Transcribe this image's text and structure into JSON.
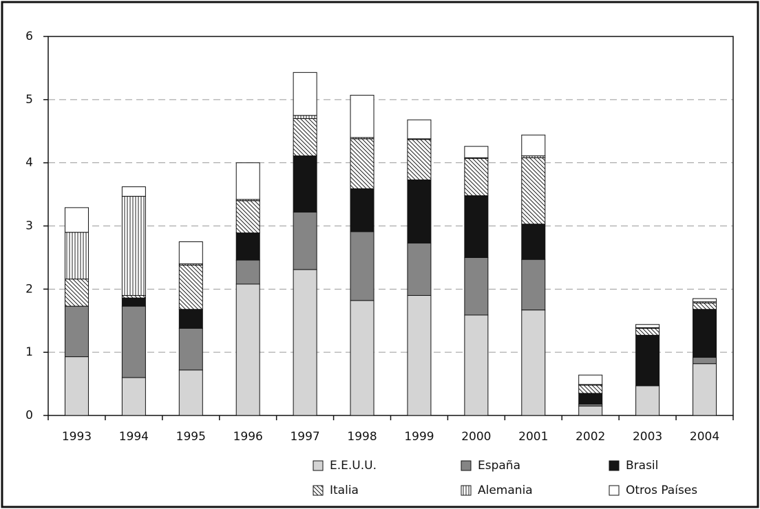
{
  "chart_data": {
    "type": "stacked_bar",
    "categories": [
      "1993",
      "1994",
      "1995",
      "1996",
      "1997",
      "1998",
      "1999",
      "2000",
      "2001",
      "2002",
      "2003",
      "2004"
    ],
    "series": [
      {
        "name": "E.E.U.U.",
        "color": "#d4d4d4",
        "values": [
          0.93,
          0.6,
          0.72,
          2.08,
          2.31,
          1.82,
          1.9,
          1.59,
          1.67,
          0.15,
          0.47,
          0.82
        ]
      },
      {
        "name": "España",
        "color": "#858585",
        "values": [
          0.8,
          1.13,
          0.66,
          0.38,
          0.91,
          1.09,
          0.83,
          0.91,
          0.8,
          0.03,
          0,
          0.1
        ]
      },
      {
        "name": "Brasil",
        "color": "#141414",
        "values": [
          0,
          0.13,
          0.3,
          0.43,
          0.89,
          0.68,
          1.0,
          0.98,
          0.56,
          0.17,
          0.8,
          0.76
        ]
      },
      {
        "name": "Italia",
        "color": "#ffffff",
        "pattern": "diagonal",
        "values": [
          0.43,
          0.04,
          0.7,
          0.51,
          0.59,
          0.79,
          0.64,
          0.59,
          1.05,
          0.13,
          0.11,
          0.1
        ]
      },
      {
        "name": "Alemania",
        "color": "#ffffff",
        "pattern": "vertical",
        "values": [
          0.74,
          1.57,
          0.02,
          0.02,
          0.05,
          0.02,
          0.01,
          0.01,
          0.03,
          0.01,
          0.01,
          0.02
        ]
      },
      {
        "name": "Otros Países",
        "color": "#ffffff",
        "values": [
          0.39,
          0.15,
          0.35,
          0.58,
          0.68,
          0.67,
          0.3,
          0.18,
          0.33,
          0.15,
          0.05,
          0.05
        ]
      }
    ],
    "ylim": [
      0,
      6
    ],
    "yticks": [
      0,
      1,
      2,
      3,
      4,
      5,
      6
    ],
    "grid": true
  }
}
